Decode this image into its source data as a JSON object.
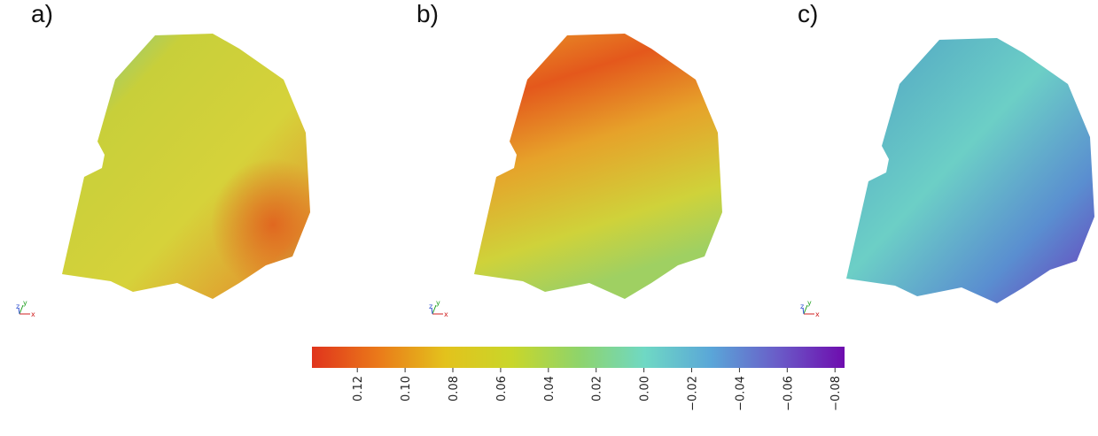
{
  "chart_data": {
    "type": "colorbar",
    "panel_labels": [
      "a)",
      "b)",
      "c)"
    ],
    "triad": [
      "z",
      "y",
      "x"
    ],
    "colors": [
      "#e0341c",
      "#ea7a1a",
      "#e3c21c",
      "#c9d62a",
      "#8fd46a",
      "#6fd8c4",
      "#5aa6d8",
      "#6a5cc8",
      "#6e0cae"
    ],
    "xlim": [
      0.139,
      -0.084
    ],
    "xticks": [
      0.12,
      {
        "value": 0.1,
        "label": "0.10"
      },
      0.08,
      0.06,
      0.04,
      0.02,
      {
        "value": 0,
        "label": "0.00"
      },
      {
        "value": -0.02,
        "label": "−0.02"
      },
      {
        "value": -0.04,
        "label": "−0.04"
      },
      {
        "value": -0.06,
        "label": "−0.06"
      },
      {
        "value": -0.08,
        "label": "−0.08"
      }
    ]
  }
}
